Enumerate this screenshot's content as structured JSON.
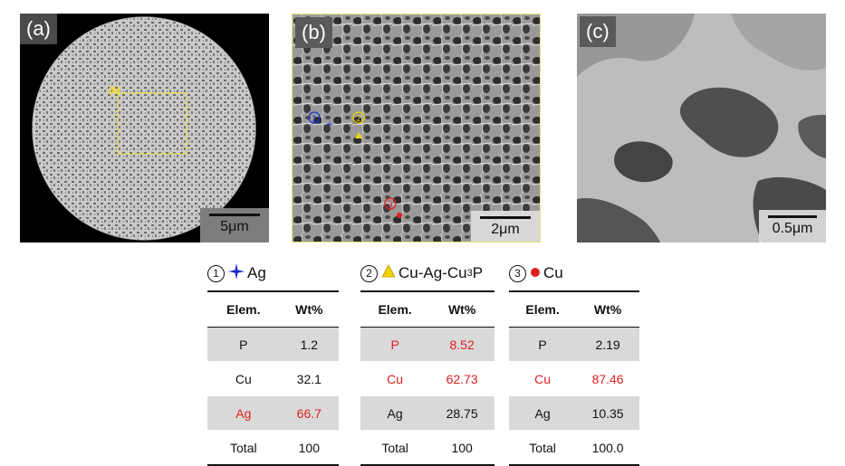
{
  "panels": [
    {
      "label": "(a)",
      "scale": "5μm",
      "roi_label": "(b)"
    },
    {
      "label": "(b)",
      "scale": "2μm",
      "points": [
        {
          "num": "1",
          "color": "#1f2fd0"
        },
        {
          "num": "2",
          "color": "#f2d200"
        },
        {
          "num": "3",
          "color": "#e02020"
        }
      ]
    },
    {
      "label": "(c)",
      "scale": "0.5μm"
    }
  ],
  "tables": [
    {
      "num": "1",
      "symbol": "+",
      "symbol_name": "blue-star-icon",
      "symbol_color": "#1f2fd0",
      "title": "Ag",
      "title_sub": "",
      "col_elem": "Elem.",
      "col_wt": "Wt%",
      "rows": [
        {
          "elem": "P",
          "wt": "1.2",
          "shade": true,
          "red": false
        },
        {
          "elem": "Cu",
          "wt": "32.1",
          "shade": false,
          "red": false
        },
        {
          "elem": "Ag",
          "wt": "66.7",
          "shade": true,
          "red": true
        },
        {
          "elem": "Total",
          "wt": "100",
          "shade": false,
          "red": false
        }
      ]
    },
    {
      "num": "2",
      "symbol": "▲",
      "symbol_name": "yellow-triangle-icon",
      "symbol_color": "#f2d200",
      "title": "Cu-Ag-Cu",
      "title_sub": "3",
      "title_tail": "P",
      "col_elem": "Elem.",
      "col_wt": "Wt%",
      "rows": [
        {
          "elem": "P",
          "wt": "8.52",
          "shade": true,
          "red": true
        },
        {
          "elem": "Cu",
          "wt": "62.73",
          "shade": false,
          "red": true
        },
        {
          "elem": "Ag",
          "wt": "28.75",
          "shade": true,
          "red": false
        },
        {
          "elem": "Total",
          "wt": "100",
          "shade": false,
          "red": false
        }
      ]
    },
    {
      "num": "3",
      "symbol": "●",
      "symbol_name": "red-dot-icon",
      "symbol_color": "#e02020",
      "title": "Cu",
      "title_sub": "",
      "col_elem": "Elem.",
      "col_wt": "Wt%",
      "rows": [
        {
          "elem": "P",
          "wt": "2.19",
          "shade": true,
          "red": false
        },
        {
          "elem": "Cu",
          "wt": "87.46",
          "shade": false,
          "red": true
        },
        {
          "elem": "Ag",
          "wt": "10.35",
          "shade": true,
          "red": false
        },
        {
          "elem": "Total",
          "wt": "100.0",
          "shade": false,
          "red": false
        }
      ]
    }
  ]
}
